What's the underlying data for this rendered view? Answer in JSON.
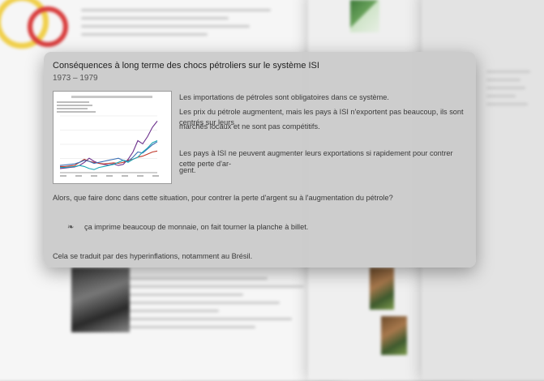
{
  "card": {
    "title": "Conséquences à long terme des chocs pétroliers sur le système ISI",
    "subtitle": "1973 – 1979",
    "paragraphs": [
      "Les importations de pétroles sont obligatoires dans ce système.",
      "Les prix du pétrole augmentent, mais les pays à ISI n'exportent pas beaucoup, ils sont centrés sur leurs",
      "marchés locaux et ne sont pas compétitifs.",
      "Les pays à ISI ne peuvent augmenter leurs exportations si rapidement pour contrer cette perte d'ar-",
      "gent."
    ],
    "question": "Alors, que faire donc dans cette situation, pour contrer la perte d'argent su à l'augmentation du pétrole?",
    "bullet_symbol": "❧",
    "answer": "ça imprime beaucoup de monnaie, on fait tourner la planche à billet.",
    "footer": "Cela se traduit par des hyperinflations, notamment au Brésil."
  },
  "chart_data": {
    "type": "line",
    "series": [
      {
        "name": "series-purple",
        "color": "#6b2f8c",
        "values": [
          8,
          9,
          10,
          11,
          14,
          20,
          28,
          22,
          18,
          16,
          15,
          17,
          14,
          16,
          26,
          40,
          62,
          56,
          70,
          88,
          100
        ]
      },
      {
        "name": "series-red",
        "color": "#c0392b",
        "values": [
          12,
          12,
          13,
          14,
          20,
          26,
          22,
          20,
          18,
          17,
          18,
          19,
          18,
          20,
          24,
          26,
          30,
          32,
          36,
          40,
          42
        ]
      },
      {
        "name": "series-blue",
        "color": "#3a6fb5",
        "values": [
          14,
          15,
          16,
          17,
          20,
          24,
          22,
          18,
          20,
          22,
          24,
          26,
          28,
          24,
          22,
          30,
          40,
          38,
          46,
          54,
          60
        ]
      },
      {
        "name": "series-teal",
        "color": "#1aa7b5",
        "values": [
          10,
          10,
          11,
          12,
          14,
          12,
          8,
          6,
          10,
          12,
          14,
          16,
          20,
          24,
          20,
          26,
          30,
          40,
          48,
          58,
          62
        ]
      }
    ],
    "ylim": [
      0,
      110
    ],
    "legend_entries": 4
  }
}
